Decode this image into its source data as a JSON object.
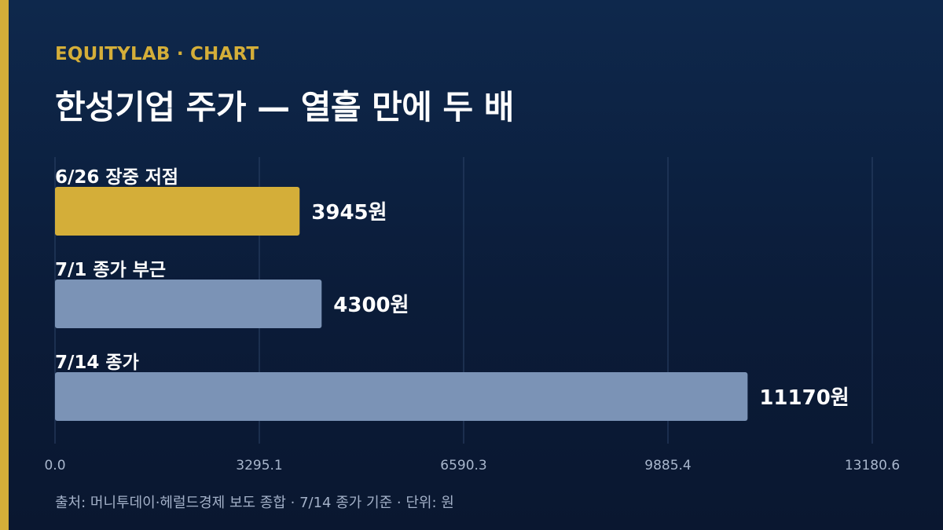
{
  "header": {
    "brand": "EQUITYLAB · CHART",
    "title": "한성기업 주가 — 열흘 만에 두 배"
  },
  "footer": {
    "source": "출처: 머니투데이·헤럴드경제 보도 종합 · 7/14 종가 기준 · 단위: 원"
  },
  "colors": {
    "accent": "#d4ae39",
    "highlight_bar": "#d4ae39",
    "bar": "#7b93b6",
    "background": "#0d2346"
  },
  "chart_data": {
    "type": "bar",
    "orientation": "horizontal",
    "categories": [
      "6/26 장중 저점",
      "7/1 종가 부근",
      "7/14 종가"
    ],
    "values": [
      3945,
      4300,
      11170
    ],
    "value_labels": [
      "3945원",
      "4300원",
      "11170원"
    ],
    "highlight_index": 0,
    "xlim": [
      0,
      13180.6
    ],
    "ticks": [
      0,
      3295.1,
      6590.3,
      9885.4,
      13180.6
    ],
    "tick_labels": [
      "0.0",
      "3295.1",
      "6590.3",
      "9885.4",
      "13180.6"
    ],
    "grid": true,
    "title": "",
    "xlabel": "",
    "ylabel": ""
  }
}
